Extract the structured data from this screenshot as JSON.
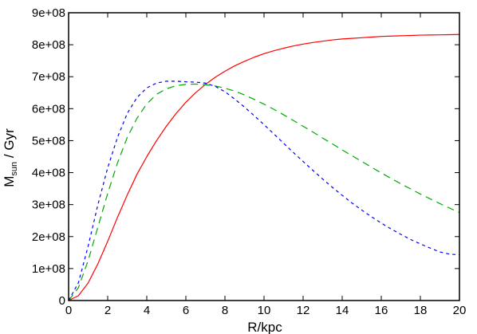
{
  "chart_data": {
    "type": "line",
    "title": "",
    "xlabel": "R/kpc",
    "ylabel_main": "M",
    "ylabel_sub": "sun",
    "ylabel_tail": " / Gyr",
    "xlim": [
      0,
      20
    ],
    "ylim": [
      0,
      900000000
    ],
    "grid": false,
    "x_ticks": [
      0,
      2,
      4,
      6,
      8,
      10,
      12,
      14,
      16,
      18,
      20
    ],
    "x_tick_labels": [
      "0",
      "2",
      "4",
      "6",
      "8",
      "10",
      "12",
      "14",
      "16",
      "18",
      "20"
    ],
    "y_ticks": [
      0,
      100000000,
      200000000,
      300000000,
      400000000,
      500000000,
      600000000,
      700000000,
      800000000,
      900000000
    ],
    "y_tick_labels": [
      "0",
      "1e+08",
      "2e+08",
      "3e+08",
      "4e+08",
      "5e+08",
      "6e+08",
      "7e+08",
      "8e+08",
      "9e+08"
    ],
    "x": [
      0,
      0.5,
      1,
      1.5,
      2,
      2.5,
      3,
      3.5,
      4,
      4.5,
      5,
      5.5,
      6,
      6.5,
      7,
      7.5,
      8,
      8.5,
      9,
      9.5,
      10,
      10.5,
      11,
      11.5,
      12,
      12.5,
      13,
      13.5,
      14,
      14.5,
      15,
      15.5,
      16,
      16.5,
      17,
      17.5,
      18,
      18.5,
      19,
      19.5,
      20
    ],
    "series": [
      {
        "style": "solid",
        "color": "#ff0000",
        "values": [
          0,
          15000000,
          55000000,
          115000000,
          185000000,
          260000000,
          330000000,
          395000000,
          450000000,
          500000000,
          545000000,
          585000000,
          620000000,
          650000000,
          676000000,
          698000000,
          717000000,
          734000000,
          748000000,
          761000000,
          772000000,
          781000000,
          789000000,
          796000000,
          802000000,
          807000000,
          811000000,
          815000000,
          818000000,
          820000000,
          822000000,
          824000000,
          826000000,
          827000000,
          828000000,
          829000000,
          830000000,
          830500000,
          831000000,
          831500000,
          832000000
        ]
      },
      {
        "style": "long-dash",
        "color": "#00aa00",
        "values": [
          0,
          40000000,
          125000000,
          230000000,
          335000000,
          430000000,
          510000000,
          570000000,
          615000000,
          645000000,
          662000000,
          672000000,
          676000000,
          677000000,
          675000000,
          671000000,
          664000000,
          655000000,
          643000000,
          629000000,
          614000000,
          598000000,
          581000000,
          563000000,
          545000000,
          527000000,
          508000000,
          490000000,
          471000000,
          453000000,
          435000000,
          417000000,
          399000000,
          382000000,
          365000000,
          349000000,
          333000000,
          318000000,
          303000000,
          289000000,
          275000000
        ]
      },
      {
        "style": "short-dash",
        "color": "#0000ff",
        "values": [
          0,
          55000000,
          170000000,
          300000000,
          415000000,
          510000000,
          585000000,
          635000000,
          665000000,
          680000000,
          686000000,
          686000000,
          684000000,
          683000000,
          680000000,
          670000000,
          653000000,
          630000000,
          605000000,
          578000000,
          550000000,
          521000000,
          492000000,
          463000000,
          435000000,
          407000000,
          380000000,
          354000000,
          329000000,
          305000000,
          283000000,
          262000000,
          242000000,
          224000000,
          207000000,
          191000000,
          177000000,
          164000000,
          152000000,
          145000000,
          143000000
        ]
      }
    ]
  }
}
